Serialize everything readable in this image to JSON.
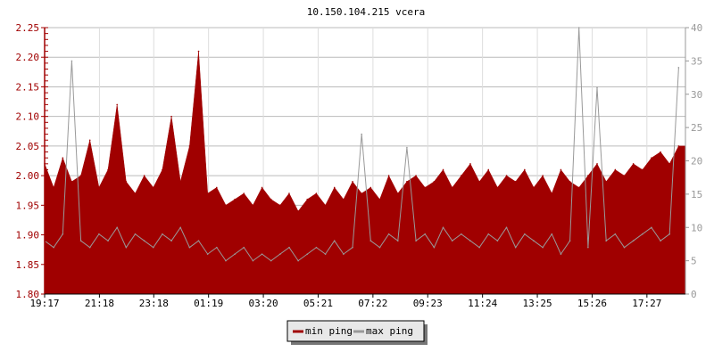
{
  "chart_data": {
    "type": "area",
    "title": "10.150.104.215 vcera",
    "xlabel": "",
    "ylabel": "",
    "x_tick_labels": [
      "19:17",
      "21:18",
      "23:18",
      "01:19",
      "03:20",
      "05:21",
      "07:22",
      "09:23",
      "11:24",
      "13:25",
      "15:26",
      "17:27"
    ],
    "y_left": {
      "min": 1.8,
      "max": 2.25,
      "ticks": [
        "1.80",
        "1.85",
        "1.90",
        "1.95",
        "2.00",
        "2.05",
        "2.10",
        "2.15",
        "2.20",
        "2.25"
      ],
      "color": "#a00000"
    },
    "y_right": {
      "min": 0,
      "max": 40,
      "ticks": [
        "0",
        "5",
        "10",
        "15",
        "20",
        "25",
        "30",
        "35",
        "40"
      ],
      "color": "#999999"
    },
    "grid": true,
    "legend_position": "bottom-center",
    "x": [
      "19:17",
      "19:37",
      "19:57",
      "20:17",
      "20:37",
      "20:57",
      "21:17",
      "21:37",
      "21:57",
      "22:17",
      "22:37",
      "22:57",
      "23:17",
      "23:37",
      "23:57",
      "00:17",
      "00:37",
      "00:57",
      "01:17",
      "01:37",
      "01:57",
      "02:17",
      "02:37",
      "02:57",
      "03:17",
      "03:37",
      "03:57",
      "04:17",
      "04:37",
      "04:57",
      "05:17",
      "05:37",
      "05:57",
      "06:17",
      "06:37",
      "06:57",
      "07:17",
      "07:37",
      "07:57",
      "08:17",
      "08:37",
      "08:57",
      "09:17",
      "09:37",
      "09:57",
      "10:17",
      "10:37",
      "10:57",
      "11:17",
      "11:37",
      "11:57",
      "12:17",
      "12:37",
      "12:57",
      "13:17",
      "13:37",
      "13:57",
      "14:17",
      "14:37",
      "14:57",
      "15:17",
      "15:37",
      "15:57",
      "16:17",
      "16:37",
      "16:57",
      "17:17",
      "17:37",
      "17:57",
      "18:17",
      "18:37"
    ],
    "series": [
      {
        "name": "min ping",
        "axis": "left",
        "color": "#a00000",
        "values": [
          2.02,
          1.98,
          2.03,
          1.99,
          2.0,
          2.06,
          1.98,
          2.01,
          2.12,
          1.99,
          1.97,
          2.0,
          1.98,
          2.01,
          2.1,
          1.99,
          2.05,
          2.21,
          1.97,
          1.98,
          1.95,
          1.96,
          1.97,
          1.95,
          1.98,
          1.96,
          1.95,
          1.97,
          1.94,
          1.96,
          1.97,
          1.95,
          1.98,
          1.96,
          1.99,
          1.97,
          1.98,
          1.96,
          2.0,
          1.97,
          1.99,
          2.0,
          1.98,
          1.99,
          2.01,
          1.98,
          2.0,
          2.02,
          1.99,
          2.01,
          1.98,
          2.0,
          1.99,
          2.01,
          1.98,
          2.0,
          1.97,
          2.01,
          1.99,
          1.98,
          2.0,
          2.02,
          1.99,
          2.01,
          2.0,
          2.02,
          2.01,
          2.03,
          2.04,
          2.02,
          2.05
        ]
      },
      {
        "name": "max ping",
        "axis": "right",
        "color": "#999999",
        "values": [
          8,
          7,
          9,
          35,
          8,
          7,
          9,
          8,
          10,
          7,
          9,
          8,
          7,
          9,
          8,
          10,
          7,
          8,
          6,
          7,
          5,
          6,
          7,
          5,
          6,
          5,
          6,
          7,
          5,
          6,
          7,
          6,
          8,
          6,
          7,
          24,
          8,
          7,
          9,
          8,
          22,
          8,
          9,
          7,
          10,
          8,
          9,
          8,
          7,
          9,
          8,
          10,
          7,
          9,
          8,
          7,
          9,
          6,
          8,
          40,
          7,
          31,
          8,
          9,
          7,
          8,
          9,
          10,
          8,
          9,
          34
        ]
      }
    ]
  }
}
